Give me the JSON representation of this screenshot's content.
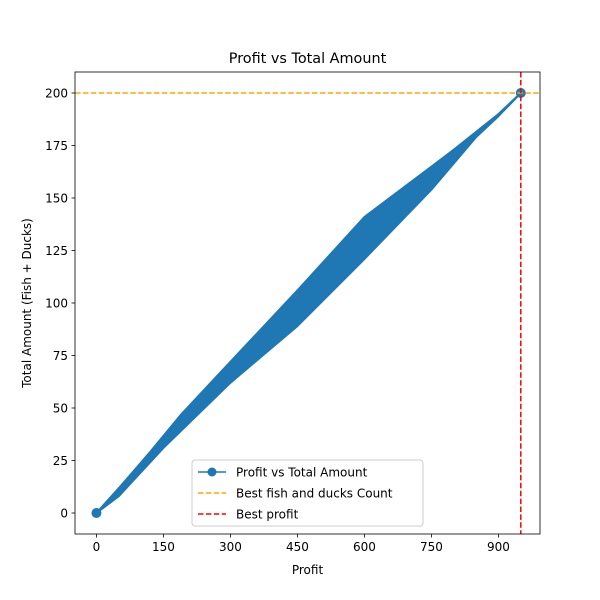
{
  "chart_data": {
    "type": "line",
    "title": "Profit vs Total Amount",
    "xlabel": "Profit",
    "ylabel": "Total Amount (Fish + Ducks)",
    "xlim": [
      -48,
      993
    ],
    "ylim": [
      -10,
      210
    ],
    "xticks": [
      0,
      150,
      300,
      450,
      600,
      750,
      900
    ],
    "yticks": [
      0,
      25,
      50,
      75,
      100,
      125,
      150,
      175,
      200
    ],
    "series": [
      {
        "name": "Profit vs Total Amount",
        "color": "#1f77b4",
        "band_upper": [
          [
            0,
            0
          ],
          [
            55,
            13
          ],
          [
            120,
            29
          ],
          [
            190,
            47
          ],
          [
            300,
            72
          ],
          [
            450,
            106
          ],
          [
            600,
            141
          ],
          [
            750,
            165
          ],
          [
            800,
            173
          ],
          [
            900,
            190
          ],
          [
            950,
            200
          ]
        ],
        "band_lower": [
          [
            950,
            200
          ],
          [
            900,
            189
          ],
          [
            850,
            179
          ],
          [
            750,
            154
          ],
          [
            600,
            121
          ],
          [
            450,
            89
          ],
          [
            300,
            62
          ],
          [
            150,
            31
          ],
          [
            50,
            8
          ],
          [
            0,
            0
          ]
        ]
      }
    ],
    "reference_lines": [
      {
        "name": "Best fish and ducks Count",
        "orientation": "horizontal",
        "value": 200,
        "color": "#ffa500",
        "style": "dashed"
      },
      {
        "name": "Best profit",
        "orientation": "vertical",
        "value": 950,
        "color": "#ff0000",
        "style": "dashed"
      }
    ],
    "legend": {
      "placement": "lower-center",
      "entries": [
        "Profit vs Total Amount",
        "Best fish and ducks Count",
        "Best profit"
      ]
    },
    "grid": false
  }
}
